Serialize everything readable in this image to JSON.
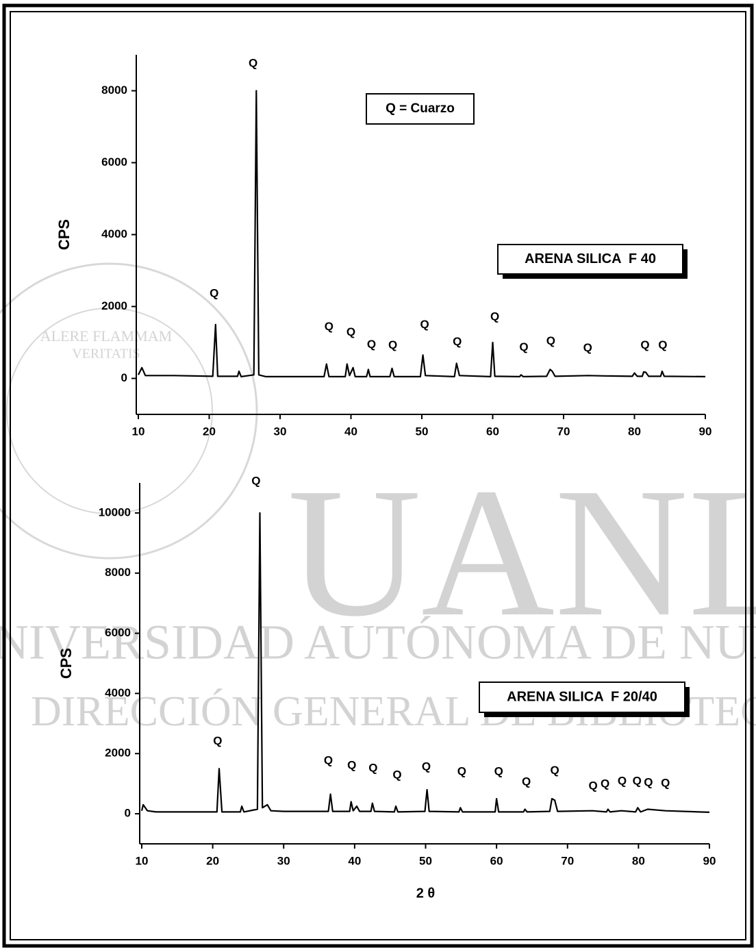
{
  "watermark": {
    "logo": "UANL",
    "line1": "UNIVERSIDAD AUTÓNOMA DE NUEVO LEÓN",
    "line2": "DIRECCIÓN GENERAL DE BIBLIOTECAS",
    "motto1": "ALERE FLAMMAM",
    "motto2": "VERITATIS"
  },
  "chart_data": [
    {
      "type": "line",
      "ylabel": "CPS",
      "legend_text": "Q = Cuarzo",
      "sample_label": "ARENA SILICA  F 40",
      "color": "#000000",
      "xlim": [
        10,
        90
      ],
      "xticks": [
        10,
        20,
        30,
        40,
        50,
        60,
        70,
        80,
        90
      ],
      "ylim": [
        -1000,
        9000
      ],
      "yticks": [
        0,
        2000,
        4000,
        6000,
        8000
      ],
      "x": [
        10,
        10.5,
        11,
        15,
        20.5,
        20.9,
        21.2,
        24,
        24.2,
        24.5,
        26.3,
        26.65,
        27,
        28,
        36.2,
        36.55,
        36.9,
        39.2,
        39.45,
        39.8,
        40.3,
        40.6,
        42.2,
        42.45,
        42.7,
        45.5,
        45.8,
        46.1,
        49.8,
        50.15,
        50.5,
        54.6,
        54.9,
        55.3,
        59.7,
        60,
        60.3,
        63.8,
        64,
        64.3,
        67.6,
        68.1,
        68.4,
        68.8,
        73.5,
        75.7,
        79.7,
        80,
        80.4,
        81.1,
        81.3,
        81.6,
        82,
        83.7,
        83.9,
        84.2,
        90
      ],
      "values": [
        100,
        300,
        80,
        80,
        60,
        1500,
        60,
        60,
        200,
        50,
        100,
        8000,
        100,
        50,
        50,
        400,
        50,
        50,
        400,
        80,
        300,
        50,
        50,
        250,
        50,
        50,
        280,
        50,
        50,
        650,
        80,
        50,
        420,
        80,
        50,
        1000,
        60,
        50,
        100,
        50,
        60,
        250,
        200,
        60,
        80,
        70,
        60,
        150,
        60,
        60,
        180,
        170,
        60,
        60,
        200,
        60,
        50
      ],
      "annotations": [
        {
          "text": "Q",
          "x": 26.2,
          "y": 8750
        },
        {
          "text": "Q",
          "x": 20.7,
          "y": 2350
        },
        {
          "text": "Q",
          "x": 36.9,
          "y": 1430
        },
        {
          "text": "Q",
          "x": 40.0,
          "y": 1280
        },
        {
          "text": "Q",
          "x": 42.9,
          "y": 930
        },
        {
          "text": "Q",
          "x": 45.9,
          "y": 910
        },
        {
          "text": "Q",
          "x": 50.4,
          "y": 1490
        },
        {
          "text": "Q",
          "x": 55.0,
          "y": 1010
        },
        {
          "text": "Q",
          "x": 60.3,
          "y": 1700
        },
        {
          "text": "Q",
          "x": 64.4,
          "y": 860
        },
        {
          "text": "Q",
          "x": 68.2,
          "y": 1030
        },
        {
          "text": "Q",
          "x": 73.4,
          "y": 840
        },
        {
          "text": "Q",
          "x": 81.5,
          "y": 910
        },
        {
          "text": "Q",
          "x": 84.0,
          "y": 910
        }
      ]
    },
    {
      "type": "line",
      "ylabel": "CPS",
      "xlabel": "2 θ",
      "sample_label": "ARENA SILICA  F 20/40",
      "color": "#000000",
      "xlim": [
        10,
        90
      ],
      "xticks": [
        10,
        20,
        30,
        40,
        50,
        60,
        70,
        80,
        90
      ],
      "ylim": [
        -1000,
        11000
      ],
      "yticks": [
        0,
        2000,
        4000,
        6000,
        8000,
        10000
      ],
      "x": [
        10,
        10.2,
        10.8,
        12,
        20.6,
        20.9,
        21.3,
        23.9,
        24.1,
        24.4,
        26.3,
        26.65,
        27,
        27.7,
        28.2,
        30,
        36.3,
        36.6,
        36.9,
        39.3,
        39.5,
        39.8,
        40.3,
        40.7,
        42.3,
        42.5,
        42.8,
        45.6,
        45.8,
        46.1,
        49.9,
        50.2,
        50.5,
        54.7,
        54.9,
        55.2,
        59.8,
        60,
        60.3,
        63.8,
        64,
        64.3,
        67.5,
        67.8,
        68.2,
        68.6,
        73.5,
        75.5,
        75.7,
        76,
        77.6,
        79.6,
        79.9,
        80.3,
        81.3,
        83.8,
        90
      ],
      "values": [
        100,
        300,
        100,
        60,
        60,
        1500,
        60,
        60,
        250,
        60,
        150,
        10000,
        200,
        300,
        100,
        80,
        80,
        650,
        80,
        80,
        400,
        100,
        250,
        80,
        80,
        350,
        80,
        60,
        250,
        60,
        80,
        800,
        80,
        60,
        200,
        60,
        60,
        500,
        60,
        60,
        150,
        60,
        80,
        500,
        450,
        80,
        100,
        60,
        150,
        60,
        100,
        60,
        200,
        60,
        150,
        100,
        50
      ],
      "annotations": [
        {
          "text": "Q",
          "x": 26.1,
          "y": 11050
        },
        {
          "text": "Q",
          "x": 20.7,
          "y": 2400
        },
        {
          "text": "Q",
          "x": 36.3,
          "y": 1760
        },
        {
          "text": "Q",
          "x": 39.6,
          "y": 1600
        },
        {
          "text": "Q",
          "x": 42.6,
          "y": 1510
        },
        {
          "text": "Q",
          "x": 46.0,
          "y": 1280
        },
        {
          "text": "Q",
          "x": 50.1,
          "y": 1550
        },
        {
          "text": "Q",
          "x": 55.1,
          "y": 1390
        },
        {
          "text": "Q",
          "x": 60.3,
          "y": 1390
        },
        {
          "text": "Q",
          "x": 64.2,
          "y": 1050
        },
        {
          "text": "Q",
          "x": 68.2,
          "y": 1420
        },
        {
          "text": "Q",
          "x": 73.6,
          "y": 910
        },
        {
          "text": "Q",
          "x": 75.3,
          "y": 980
        },
        {
          "text": "Q",
          "x": 77.7,
          "y": 1070
        },
        {
          "text": "Q",
          "x": 79.8,
          "y": 1070
        },
        {
          "text": "Q",
          "x": 81.4,
          "y": 1030
        },
        {
          "text": "Q",
          "x": 83.8,
          "y": 1000
        }
      ]
    }
  ]
}
